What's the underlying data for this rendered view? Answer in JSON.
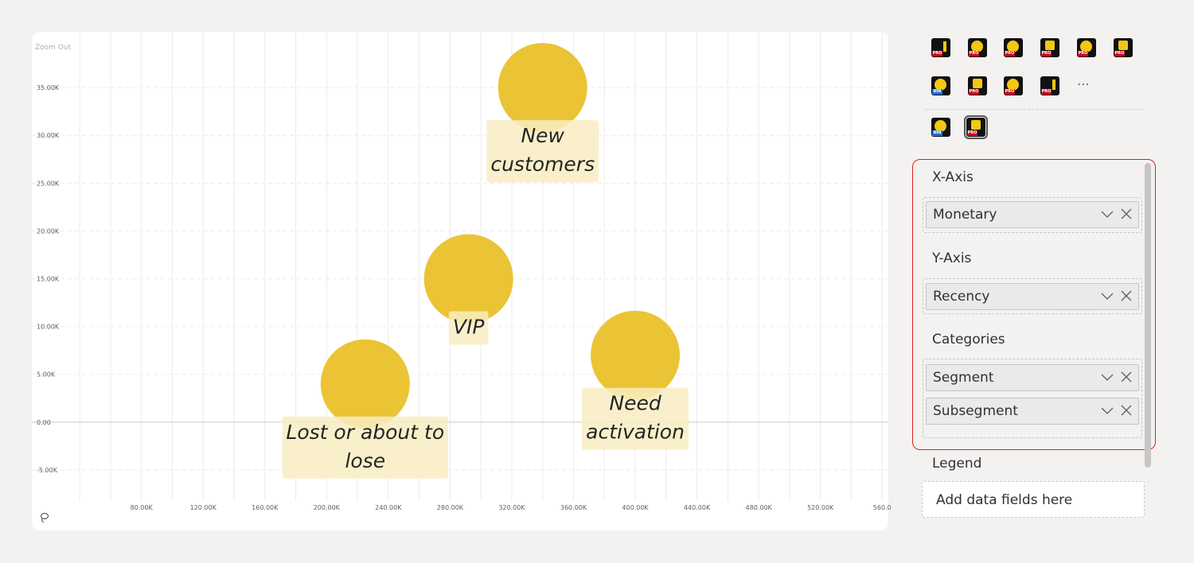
{
  "chart": {
    "zoom_out_label": "Zoom Out",
    "colors": {
      "bubble": "#EBC435",
      "label_bg": "#F8EDC2",
      "zero_line": "#C8C6C4",
      "grid": "#EDEBE9"
    }
  },
  "chart_data": {
    "type": "scatter",
    "title": "",
    "xlabel": "",
    "ylabel": "",
    "x_ticks": [
      "80.00K",
      "120.00K",
      "160.00K",
      "200.00K",
      "240.00K",
      "280.00K",
      "320.00K",
      "360.00K",
      "400.00K",
      "440.00K",
      "480.00K",
      "520.00K",
      "560.0"
    ],
    "y_ticks": [
      "35.00K",
      "30.00K",
      "25.00K",
      "20.00K",
      "15.00K",
      "10.00K",
      "5.00K",
      "0.00",
      "-5.00K"
    ],
    "xlim": [
      42000,
      564000
    ],
    "ylim": [
      -7000,
      40000
    ],
    "points": [
      {
        "label_lines": [
          "New",
          "customers"
        ],
        "x": 340000,
        "y": 35000
      },
      {
        "label_lines": [
          "VIP"
        ],
        "x": 292000,
        "y": 15000
      },
      {
        "label_lines": [
          "Need",
          "activation"
        ],
        "x": 400000,
        "y": 7000
      },
      {
        "label_lines": [
          "Lost or about to",
          "lose"
        ],
        "x": 225000,
        "y": 4000
      }
    ],
    "grid": true,
    "legend": "none"
  },
  "visuals": {
    "more_label": "⋯",
    "icons": [
      {
        "name": "bar-chart-pro-icon",
        "tag": "PRO"
      },
      {
        "name": "donut-chart-pro-icon",
        "tag": "PRO"
      },
      {
        "name": "radar-chart-pro-icon",
        "tag": "PRO"
      },
      {
        "name": "org-chart-pro-icon",
        "tag": "PRO"
      },
      {
        "name": "gauge-chart-pro-icon",
        "tag": "PRO"
      },
      {
        "name": "funnel-chart-pro-icon",
        "tag": "PRO"
      },
      {
        "name": "sunburst-chart-bin-icon",
        "tag": "BIN"
      },
      {
        "name": "dot-chart-pro-icon",
        "tag": "PRO"
      },
      {
        "name": "network-chart-pro-icon",
        "tag": "PRO"
      },
      {
        "name": "area-chart-pro-icon",
        "tag": "PRO"
      },
      {
        "name": "bubble-chart-bin-icon",
        "tag": "BIN"
      },
      {
        "name": "quadrant-chart-pro-icon",
        "tag": "PRO"
      }
    ]
  },
  "wells": {
    "x_axis": {
      "title": "X-Axis",
      "fields": [
        "Monetary"
      ]
    },
    "y_axis": {
      "title": "Y-Axis",
      "fields": [
        "Recency"
      ]
    },
    "categories": {
      "title": "Categories",
      "fields": [
        "Segment",
        "Subsegment"
      ]
    },
    "legend": {
      "title": "Legend",
      "placeholder": "Add data fields here"
    }
  }
}
